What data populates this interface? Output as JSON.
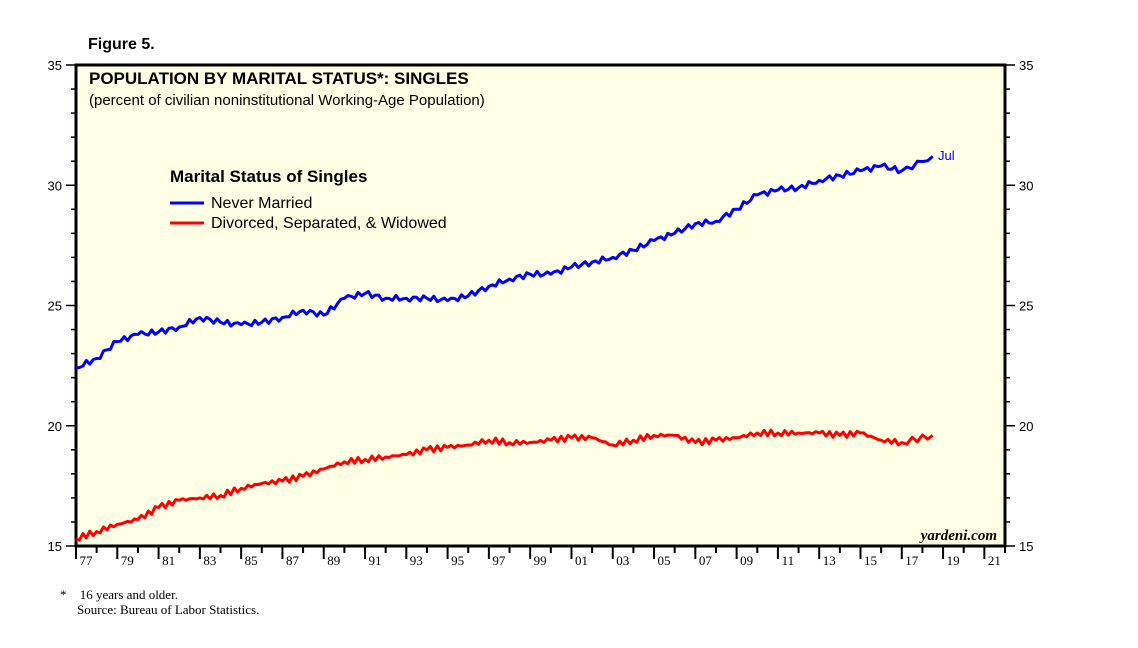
{
  "figure_label": "Figure 5.",
  "footnote": {
    "mark": "*",
    "line1": "16 years and older.",
    "line2": "Source: Bureau of Labor Statistics."
  },
  "chart_data": {
    "type": "line",
    "title": "POPULATION BY MARITAL STATUS*: SINGLES",
    "subtitle": "(percent of civilian noninstitutional Working-Age Population)",
    "legend_title": "Marital Status of Singles",
    "legend_placement": "top-left",
    "watermark": "yardeni.com",
    "end_label": "Jul",
    "ylim": [
      15,
      35
    ],
    "yticks": [
      15,
      20,
      25,
      30,
      35
    ],
    "xlim": [
      1977,
      2022
    ],
    "xtick_labels": [
      "77",
      "79",
      "81",
      "83",
      "85",
      "87",
      "89",
      "91",
      "93",
      "95",
      "97",
      "99",
      "01",
      "03",
      "05",
      "07",
      "09",
      "11",
      "13",
      "15",
      "17",
      "19",
      "21"
    ],
    "background": "#ffffe6",
    "x": [
      1977,
      1978,
      1979,
      1980,
      1981,
      1982,
      1983,
      1984,
      1985,
      1986,
      1987,
      1988,
      1989,
      1990,
      1991,
      1992,
      1993,
      1994,
      1995,
      1996,
      1997,
      1998,
      1999,
      2000,
      2001,
      2002,
      2003,
      2004,
      2005,
      2006,
      2007,
      2008,
      2009,
      2010,
      2011,
      2012,
      2013,
      2014,
      2015,
      2016,
      2017,
      2018.5
    ],
    "series": [
      {
        "name": "Never Married",
        "color": "#0000ff",
        "values": [
          22.4,
          22.8,
          23.5,
          23.8,
          23.9,
          24.1,
          24.5,
          24.3,
          24.2,
          24.3,
          24.5,
          24.8,
          24.6,
          25.3,
          25.5,
          25.3,
          25.3,
          25.3,
          25.2,
          25.4,
          25.8,
          26.1,
          26.3,
          26.3,
          26.6,
          26.8,
          27.0,
          27.3,
          27.7,
          28.0,
          28.4,
          28.5,
          29.0,
          29.6,
          29.8,
          29.9,
          30.2,
          30.4,
          30.6,
          30.8,
          30.6,
          31.2
        ]
      },
      {
        "name": "Divorced, Separated, & Widowed",
        "color": "#ff0000",
        "values": [
          15.3,
          15.6,
          15.9,
          16.1,
          16.6,
          16.9,
          17.0,
          17.1,
          17.4,
          17.6,
          17.7,
          17.9,
          18.2,
          18.5,
          18.6,
          18.7,
          18.8,
          19.0,
          19.1,
          19.2,
          19.4,
          19.3,
          19.3,
          19.4,
          19.5,
          19.5,
          19.2,
          19.4,
          19.6,
          19.6,
          19.3,
          19.4,
          19.5,
          19.7,
          19.7,
          19.7,
          19.7,
          19.6,
          19.7,
          19.4,
          19.3,
          19.6
        ]
      }
    ]
  }
}
